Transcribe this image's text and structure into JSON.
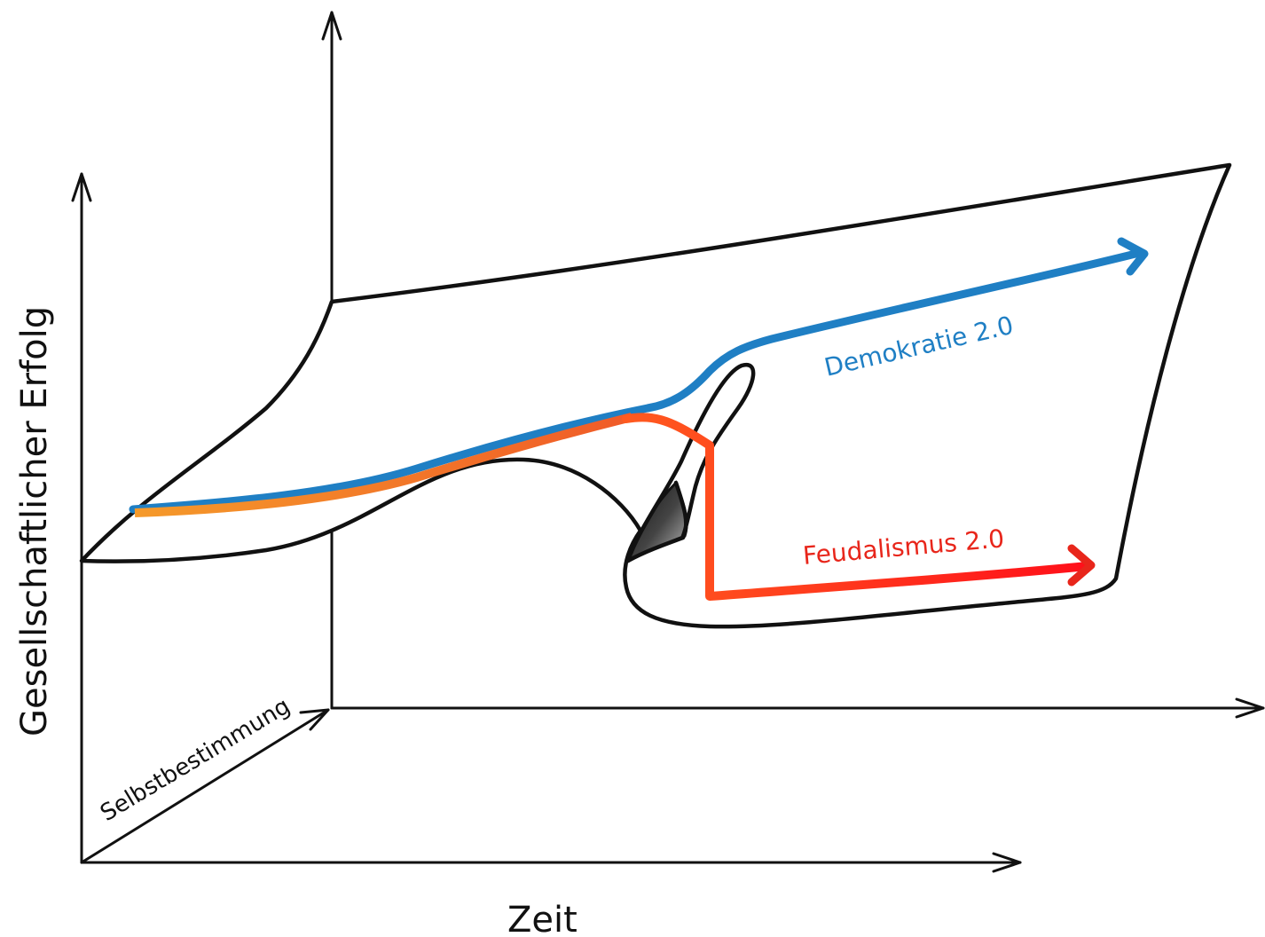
{
  "axes": {
    "y_label": "Gesellschaftlicher Erfolg",
    "x_label": "Zeit",
    "z_label": "Selbstbestimmung"
  },
  "paths": {
    "democracy": {
      "label": "Demokratie 2.0",
      "color": "#1f7fc4"
    },
    "feudalism": {
      "label": "Feudalismus 2.0",
      "color": "#e8261b"
    },
    "shared_start_color": "#f39a2b"
  }
}
